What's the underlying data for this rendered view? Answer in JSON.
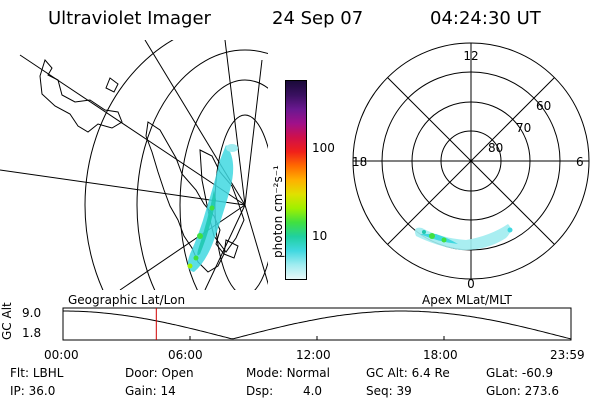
{
  "header": {
    "instrument": "Ultraviolet Imager",
    "date": "24 Sep 07",
    "time": "04:24:30 UT"
  },
  "colorbar": {
    "unit_label": "photon cm⁻²s⁻¹",
    "ticks": [
      "100",
      "10"
    ],
    "scale": "log",
    "colors_top_to_bottom": [
      "#1a0a3a",
      "#3a1060",
      "#6a1890",
      "#a0108a",
      "#d0104a",
      "#f0201a",
      "#ff6a00",
      "#ffb000",
      "#e0e000",
      "#a0f000",
      "#40e040",
      "#20d0a0",
      "#40d8e0",
      "#a0ecf0",
      "#e8f8f8"
    ]
  },
  "left_map": {
    "label": "Geographic Lat/Lon"
  },
  "right_map": {
    "label": "Apex MLat/MLT",
    "mlt_labels": {
      "top": "12",
      "left": "18",
      "right": "6",
      "bottom": "0"
    },
    "mlat_labels": [
      "60",
      "70",
      "80"
    ]
  },
  "timeline": {
    "ylabel": "GC Alt",
    "y_ticks": [
      "9.0",
      "1.8"
    ],
    "x_ticks": [
      "00:00",
      "06:00",
      "12:00",
      "18:00",
      "23:59"
    ],
    "current_time_hours": 4.408,
    "marker_color": "#d00000"
  },
  "footer": {
    "row1": [
      {
        "key": "Flt:",
        "value": "LBHL"
      },
      {
        "key": "Door:",
        "value": "Open"
      },
      {
        "key": "Mode:",
        "value": "Normal"
      },
      {
        "key": "GC Alt:",
        "value": "6.4 Re"
      },
      {
        "key": "GLat:",
        "value": "-60.9"
      }
    ],
    "row2": [
      {
        "key": "IP:",
        "value": "36.0"
      },
      {
        "key": "Gain:",
        "value": "14"
      },
      {
        "key": "Dsp:",
        "value": "4.0"
      },
      {
        "key": "Seq:",
        "value": "39"
      },
      {
        "key": "GLon:",
        "value": "273.6"
      }
    ]
  }
}
